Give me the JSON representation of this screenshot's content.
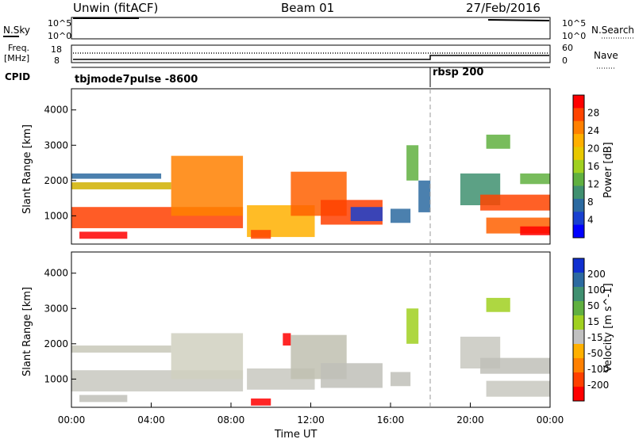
{
  "header": {
    "left": "Unwin (fitACF)",
    "center": "Beam 01",
    "right": "27/Feb/2016"
  },
  "panels": {
    "nsky": {
      "label": "N.Sky",
      "ticks": [
        "10^5",
        "10^0"
      ],
      "right_label": "N.Search",
      "right_ticks": [
        "10^5",
        "10^0"
      ]
    },
    "freq": {
      "label_line1": "Freq.",
      "label_line2": "[MHz]",
      "ticks": [
        "18",
        "8"
      ],
      "right_label": "Nave",
      "right_ticks": [
        "60",
        "0"
      ]
    },
    "cpid": {
      "label": "CPID",
      "mode_a": "tbjmode7pulse -8600",
      "mode_b": "rbsp 200"
    }
  },
  "chart_data": [
    {
      "type": "heatmap",
      "panel": "power",
      "ylabel": "Slant Range [km]",
      "yticks": [
        "4000",
        "3000",
        "2000",
        "1000"
      ],
      "ylim": [
        200,
        4600
      ],
      "xlim": [
        0,
        24
      ],
      "colorbar": {
        "label": "Power [dB]",
        "ticks": [
          "28",
          "24",
          "20",
          "16",
          "12",
          "8",
          "4"
        ],
        "colors": [
          "#ff0000",
          "#ff4400",
          "#ff8000",
          "#ffb000",
          "#e8c800",
          "#a0d020",
          "#60b040",
          "#409070",
          "#2c6aa0",
          "#1840d0",
          "#0000ff"
        ]
      },
      "bands": [
        {
          "t0": 0.0,
          "t1": 8.6,
          "r0": 650,
          "r1": 1250,
          "color": "#ff4000"
        },
        {
          "t0": 0.4,
          "t1": 2.8,
          "r0": 350,
          "r1": 550,
          "color": "#ff0000"
        },
        {
          "t0": 0.0,
          "t1": 5.0,
          "r0": 1750,
          "r1": 1950,
          "color": "#d0b000"
        },
        {
          "t0": 0.0,
          "t1": 4.5,
          "r0": 2050,
          "r1": 2200,
          "color": "#2c6aa0"
        },
        {
          "t0": 5.0,
          "t1": 8.6,
          "r0": 1000,
          "r1": 2700,
          "color": "#ff8000"
        },
        {
          "t0": 8.8,
          "t1": 12.2,
          "r0": 400,
          "r1": 1300,
          "color": "#ffb000"
        },
        {
          "t0": 9.0,
          "t1": 10.0,
          "r0": 350,
          "r1": 600,
          "color": "#ff4400"
        },
        {
          "t0": 11.0,
          "t1": 13.8,
          "r0": 1000,
          "r1": 2250,
          "color": "#ff6000"
        },
        {
          "t0": 12.5,
          "t1": 15.6,
          "r0": 750,
          "r1": 1450,
          "color": "#ff4000"
        },
        {
          "t0": 14.0,
          "t1": 15.6,
          "r0": 850,
          "r1": 1250,
          "color": "#1840d0"
        },
        {
          "t0": 16.0,
          "t1": 17.0,
          "r0": 800,
          "r1": 1200,
          "color": "#2c6aa0"
        },
        {
          "t0": 16.8,
          "t1": 17.4,
          "r0": 2000,
          "r1": 3000,
          "color": "#60b040"
        },
        {
          "t0": 17.4,
          "t1": 18.0,
          "r0": 1100,
          "r1": 2000,
          "color": "#2c6aa0"
        },
        {
          "t0": 19.5,
          "t1": 21.5,
          "r0": 1300,
          "r1": 2200,
          "color": "#409070"
        },
        {
          "t0": 20.5,
          "t1": 24.0,
          "r0": 1150,
          "r1": 1600,
          "color": "#ff4400"
        },
        {
          "t0": 20.8,
          "t1": 24.0,
          "r0": 500,
          "r1": 950,
          "color": "#ff6000"
        },
        {
          "t0": 22.5,
          "t1": 24.0,
          "r0": 450,
          "r1": 700,
          "color": "#ff0000"
        },
        {
          "t0": 20.8,
          "t1": 22.0,
          "r0": 2900,
          "r1": 3300,
          "color": "#60b040"
        },
        {
          "t0": 22.5,
          "t1": 24.0,
          "r0": 1900,
          "r1": 2200,
          "color": "#60b040"
        }
      ]
    },
    {
      "type": "heatmap",
      "panel": "velocity",
      "ylabel": "Slant Range [km]",
      "xlabel": "Time UT",
      "yticks": [
        "4000",
        "3000",
        "2000",
        "1000"
      ],
      "xticks": [
        "00:00",
        "04:00",
        "08:00",
        "12:00",
        "16:00",
        "20:00",
        "00:00"
      ],
      "ylim": [
        200,
        4600
      ],
      "xlim": [
        0,
        24
      ],
      "colorbar": {
        "label": "Velocity [m s^-1]",
        "ticks": [
          "200",
          "100",
          "50",
          "15",
          "-15",
          "-50",
          "-100",
          "-200"
        ],
        "colors": [
          "#1030d0",
          "#2c6aa0",
          "#409070",
          "#60b040",
          "#a0d020",
          "#c0c0c0",
          "#ffb000",
          "#ff8000",
          "#ff4000",
          "#ff0000"
        ]
      },
      "bands": [
        {
          "t0": 0.0,
          "t1": 8.6,
          "r0": 650,
          "r1": 1250,
          "color": "#c8c8c0"
        },
        {
          "t0": 0.4,
          "t1": 2.8,
          "r0": 350,
          "r1": 550,
          "color": "#c0c0b8"
        },
        {
          "t0": 0.0,
          "t1": 5.0,
          "r0": 1750,
          "r1": 1950,
          "color": "#c8c8b8"
        },
        {
          "t0": 5.0,
          "t1": 8.6,
          "r0": 1000,
          "r1": 2300,
          "color": "#d0d0c0"
        },
        {
          "t0": 8.8,
          "t1": 12.2,
          "r0": 700,
          "r1": 1300,
          "color": "#c8c8c0"
        },
        {
          "t0": 9.0,
          "t1": 10.0,
          "r0": 250,
          "r1": 450,
          "color": "#ff0000"
        },
        {
          "t0": 10.6,
          "t1": 11.0,
          "r0": 1950,
          "r1": 2300,
          "color": "#ff0000"
        },
        {
          "t0": 11.0,
          "t1": 13.8,
          "r0": 1000,
          "r1": 2250,
          "color": "#c0c0b0"
        },
        {
          "t0": 12.5,
          "t1": 15.6,
          "r0": 750,
          "r1": 1450,
          "color": "#c0c0b8"
        },
        {
          "t0": 16.0,
          "t1": 17.0,
          "r0": 800,
          "r1": 1200,
          "color": "#c0c0b8"
        },
        {
          "t0": 16.8,
          "t1": 17.4,
          "r0": 2000,
          "r1": 3000,
          "color": "#a0d020"
        },
        {
          "t0": 19.5,
          "t1": 21.5,
          "r0": 1300,
          "r1": 2200,
          "color": "#c8c8c0"
        },
        {
          "t0": 20.5,
          "t1": 24.0,
          "r0": 1150,
          "r1": 1600,
          "color": "#c0c0b8"
        },
        {
          "t0": 20.8,
          "t1": 24.0,
          "r0": 500,
          "r1": 950,
          "color": "#c8c8c0"
        },
        {
          "t0": 20.8,
          "t1": 22.0,
          "r0": 2900,
          "r1": 3300,
          "color": "#a0d020"
        }
      ]
    }
  ]
}
